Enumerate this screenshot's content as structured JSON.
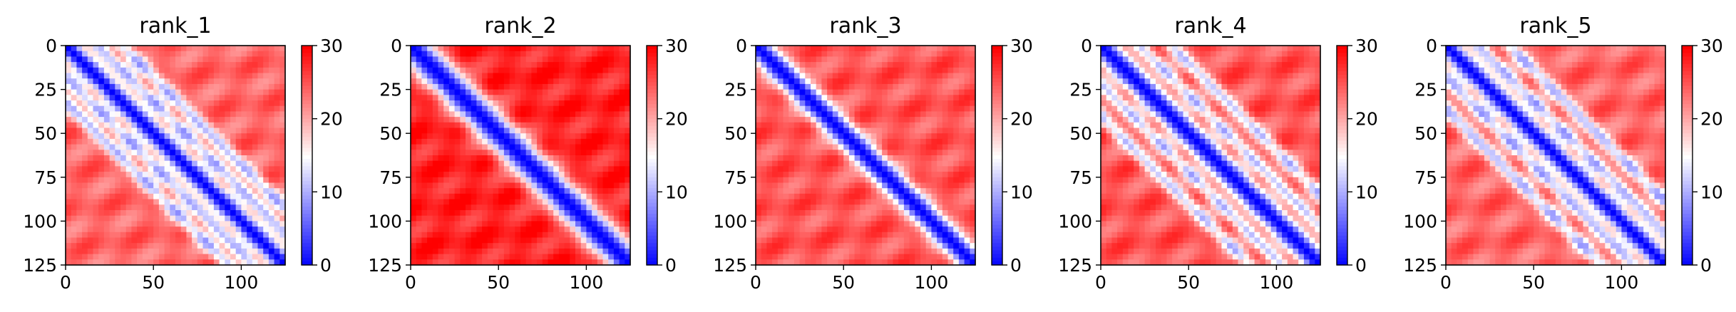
{
  "chart_data": [
    {
      "type": "heatmap",
      "title": "rank_1",
      "xlabel": "",
      "ylabel": "",
      "xlim": [
        0,
        125
      ],
      "ylim": [
        125,
        0
      ],
      "x_ticks": [
        0,
        50,
        100
      ],
      "y_ticks": [
        0,
        25,
        50,
        75,
        100,
        125
      ],
      "colormap": "bwr",
      "colorbar": {
        "range": [
          0,
          30
        ],
        "ticks": [
          0,
          10,
          20,
          30
        ]
      },
      "pattern": {
        "diagonal_width": 6,
        "off_diagonal_bands": [
          18,
          32
        ],
        "background_level": 24
      }
    },
    {
      "type": "heatmap",
      "title": "rank_2",
      "xlabel": "",
      "ylabel": "",
      "xlim": [
        0,
        125
      ],
      "ylim": [
        125,
        0
      ],
      "x_ticks": [
        0,
        50,
        100
      ],
      "y_ticks": [
        0,
        25,
        50,
        75,
        100,
        125
      ],
      "colormap": "bwr",
      "colorbar": {
        "range": [
          0,
          30
        ],
        "ticks": [
          0,
          10,
          20,
          30
        ]
      },
      "pattern": {
        "diagonal_width": 9,
        "off_diagonal_bands": [],
        "background_level": 28
      }
    },
    {
      "type": "heatmap",
      "title": "rank_3",
      "xlabel": "",
      "ylabel": "",
      "xlim": [
        0,
        125
      ],
      "ylim": [
        125,
        0
      ],
      "x_ticks": [
        0,
        50,
        100
      ],
      "y_ticks": [
        0,
        25,
        50,
        75,
        100,
        125
      ],
      "colormap": "bwr",
      "colorbar": {
        "range": [
          0,
          30
        ],
        "ticks": [
          0,
          10,
          20,
          30
        ]
      },
      "pattern": {
        "diagonal_width": 7,
        "off_diagonal_bands": [],
        "background_level": 25
      }
    },
    {
      "type": "heatmap",
      "title": "rank_4",
      "xlabel": "",
      "ylabel": "",
      "xlim": [
        0,
        125
      ],
      "ylim": [
        125,
        0
      ],
      "x_ticks": [
        0,
        50,
        100
      ],
      "y_ticks": [
        0,
        25,
        50,
        75,
        100,
        125
      ],
      "colormap": "bwr",
      "colorbar": {
        "range": [
          0,
          30
        ],
        "ticks": [
          0,
          10,
          20,
          30
        ]
      },
      "pattern": {
        "diagonal_width": 7,
        "off_diagonal_bands": [
          22,
          40
        ],
        "background_level": 25
      }
    },
    {
      "type": "heatmap",
      "title": "rank_5",
      "xlabel": "",
      "ylabel": "",
      "xlim": [
        0,
        125
      ],
      "ylim": [
        125,
        0
      ],
      "x_ticks": [
        0,
        50,
        100
      ],
      "y_ticks": [
        0,
        25,
        50,
        75,
        100,
        125
      ],
      "colormap": "bwr",
      "colorbar": {
        "range": [
          0,
          30
        ],
        "ticks": [
          0,
          10,
          20,
          30
        ]
      },
      "pattern": {
        "diagonal_width": 6,
        "off_diagonal_bands": [
          18,
          36
        ],
        "background_level": 24
      }
    }
  ]
}
